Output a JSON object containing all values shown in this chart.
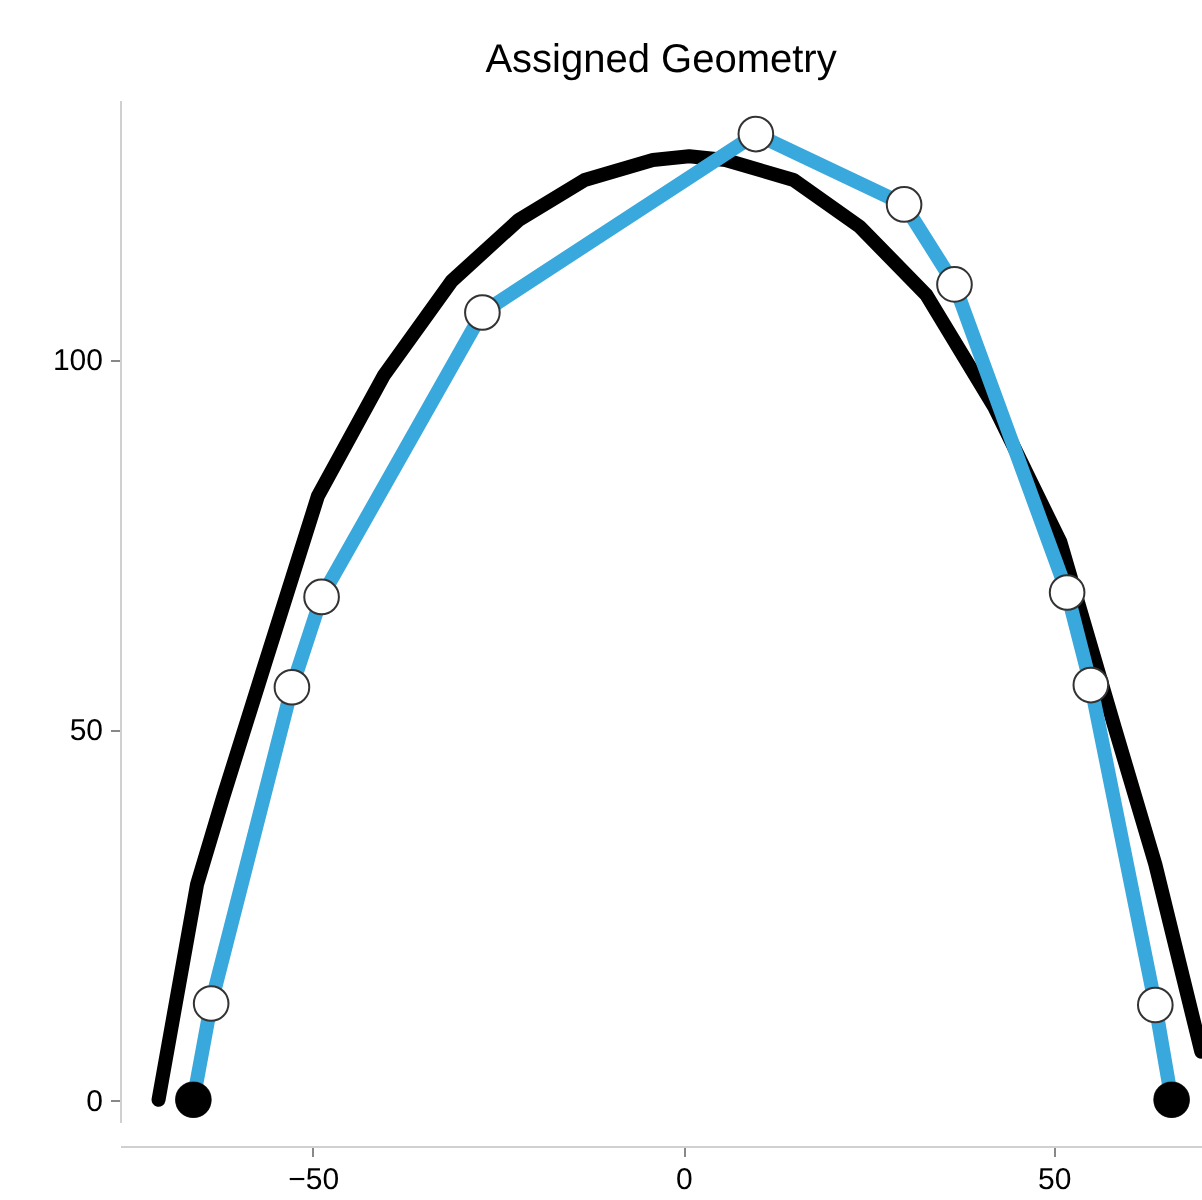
{
  "chart_data": {
    "type": "line",
    "title": "Assigned Geometry",
    "xlim": [
      -76,
      70
    ],
    "ylim": [
      -3,
      135
    ],
    "xticks": [
      -50,
      0,
      50
    ],
    "yticks": [
      0,
      50,
      100
    ],
    "grid": false,
    "marker": "circle",
    "line_style": "solid",
    "series": [
      {
        "type": "line",
        "color": "#000000",
        "marker": "none",
        "x": [
          -70.8,
          -65.6,
          -62.1,
          -56.4,
          -49.3,
          -40.4,
          -31.2,
          -22.2,
          -13.3,
          -4.1,
          0.8,
          5.7,
          14.9,
          23.8,
          32.8,
          42.0,
          50.9,
          58.3,
          63.7,
          69.9
        ],
        "values": [
          0,
          29.1,
          40.8,
          59.0,
          81.5,
          97.8,
          110.6,
          118.8,
          124.2,
          126.9,
          127.4,
          126.9,
          124.2,
          117.9,
          108.7,
          93.5,
          75.3,
          50.0,
          31.8,
          6.5
        ]
      },
      {
        "color": "#39a8dd",
        "x": [
          -66.1,
          -63.7,
          -52.8,
          -48.8,
          -27.1,
          9.8,
          29.8,
          36.6,
          51.8,
          55.0,
          63.7,
          65.9
        ],
        "values": [
          0,
          13.0,
          55.7,
          67.9,
          106.3,
          130.4,
          120.9,
          110.1,
          68.5,
          56.0,
          12.8,
          0
        ]
      },
      {
        "type": "scatter",
        "color": "#000000",
        "x": [
          -66.1,
          65.9
        ],
        "values": [
          0,
          0
        ]
      }
    ]
  }
}
